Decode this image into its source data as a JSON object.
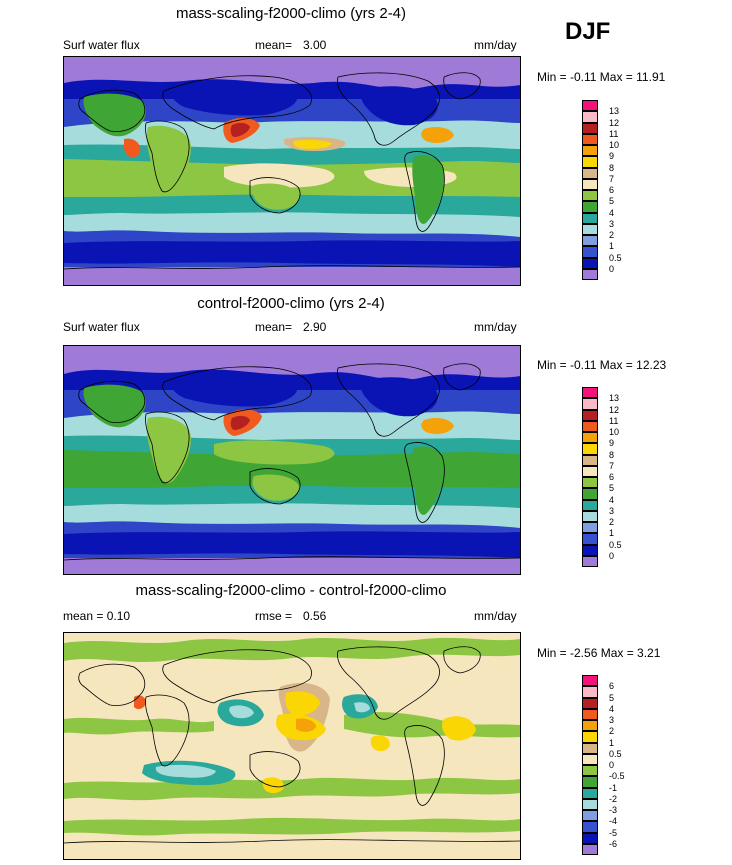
{
  "header": {
    "season": "DJF"
  },
  "panels": [
    {
      "title": "mass-scaling-f2000-climo (yrs 2-4)",
      "left_label": "Surf water flux",
      "mean_label": "mean=",
      "mean_value": "3.00",
      "units": "mm/day",
      "minmax_text": "Min =  -0.11 Max =  11.91",
      "legend": {
        "labels": [
          "13",
          "12",
          "11",
          "10",
          "9",
          "8",
          "7",
          "6",
          "5",
          "4",
          "3",
          "2",
          "1",
          "0.5",
          "0"
        ],
        "colors": [
          "#f2147a",
          "#f9b9c6",
          "#b52121",
          "#f05a1e",
          "#f5a20a",
          "#fbd605",
          "#d9b689",
          "#f5e6be",
          "#8dc642",
          "#3fa535",
          "#2aa89b",
          "#a6dcdc",
          "#7e9fe0",
          "#3652d1",
          "#0a14b4",
          "#9f7ad7"
        ]
      }
    },
    {
      "title": "control-f2000-climo (yrs 2-4)",
      "left_label": "Surf water flux",
      "mean_label": "mean=",
      "mean_value": "2.90",
      "units": "mm/day",
      "minmax_text": "Min =  -0.11 Max =  12.23",
      "legend": {
        "labels": [
          "13",
          "12",
          "11",
          "10",
          "9",
          "8",
          "7",
          "6",
          "5",
          "4",
          "3",
          "2",
          "1",
          "0.5",
          "0"
        ],
        "colors": [
          "#f2147a",
          "#f9b9c6",
          "#b52121",
          "#f05a1e",
          "#f5a20a",
          "#fbd605",
          "#d9b689",
          "#f5e6be",
          "#8dc642",
          "#3fa535",
          "#2aa89b",
          "#a6dcdc",
          "#7e9fe0",
          "#3652d1",
          "#0a14b4",
          "#9f7ad7"
        ]
      }
    },
    {
      "title": "mass-scaling-f2000-climo - control-f2000-climo",
      "left_label": "mean =   0.10",
      "mean_label": "rmse =",
      "mean_value": "0.56",
      "units": "mm/day",
      "minmax_text": "Min =  -2.56 Max =   3.21",
      "legend": {
        "labels": [
          "6",
          "5",
          "4",
          "3",
          "2",
          "1",
          "0.5",
          "0",
          "-0.5",
          "-1",
          "-2",
          "-3",
          "-4",
          "-5",
          "-6"
        ],
        "colors": [
          "#f2147a",
          "#f9b9c6",
          "#b52121",
          "#f05a1e",
          "#f5a20a",
          "#fbd605",
          "#d9b689",
          "#f5e6be",
          "#8dc642",
          "#3fa535",
          "#2aa89b",
          "#a6dcdc",
          "#7e9fe0",
          "#3652d1",
          "#0a14b4",
          "#9f7ad7"
        ]
      }
    }
  ]
}
